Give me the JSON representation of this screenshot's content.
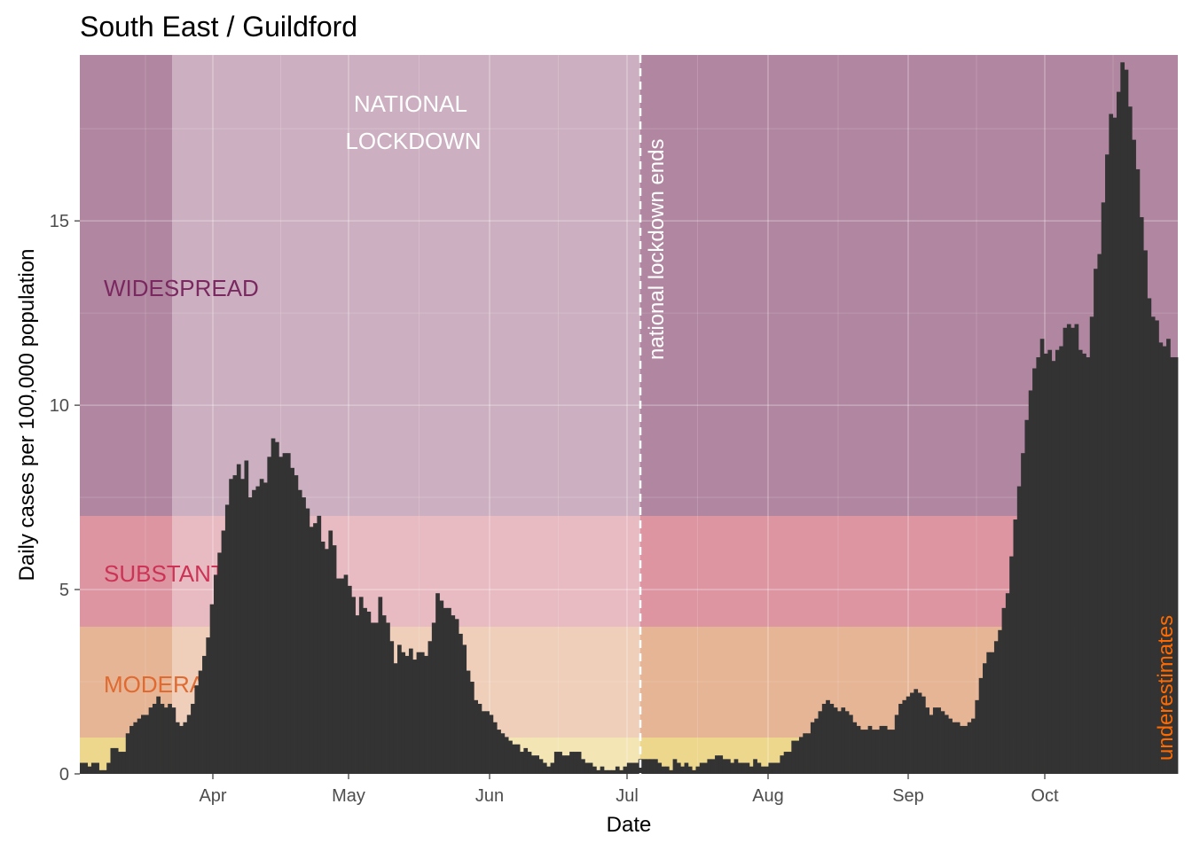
{
  "chart_data": {
    "type": "bar",
    "title": "South East / Guildford",
    "xlabel": "Date",
    "ylabel": "Daily cases per 100,000 population",
    "x_ticks": [
      "Apr",
      "May",
      "Jun",
      "Jul",
      "Aug",
      "Sep",
      "Oct"
    ],
    "y_ticks": [
      "0",
      "5",
      "10",
      "15"
    ],
    "ylim": [
      0,
      19.5
    ],
    "grid": true,
    "bands": [
      {
        "label": "",
        "from": 0,
        "to": 1,
        "color": "#e6c65c"
      },
      {
        "label": "MODERATE",
        "from": 1,
        "to": 4,
        "color": "#e0a37a"
      },
      {
        "label": "SUBSTANTIAL",
        "from": 4,
        "to": 7,
        "color": "#d37a8a"
      },
      {
        "label": "WIDESPREAD",
        "from": 7,
        "to": 19.5,
        "color": "#a3718f"
      }
    ],
    "band_label_colors": [
      "#d4a000",
      "#e06a30",
      "#cc3355",
      "#7a2860"
    ],
    "annotations": {
      "lockdown": "NATIONAL\nLOCKDOWN",
      "lockdown_end": "national lockdown ends",
      "underestimates": "underestimates"
    },
    "values": [
      0.3,
      0.3,
      0.2,
      0.3,
      0.3,
      0.1,
      0.1,
      0.3,
      0.7,
      0.7,
      0.6,
      0.6,
      1.1,
      1.3,
      1.4,
      1.5,
      1.6,
      1.6,
      1.8,
      1.9,
      2.1,
      1.9,
      1.8,
      1.9,
      1.8,
      1.4,
      1.3,
      1.4,
      1.6,
      1.9,
      2.4,
      2.8,
      3.2,
      3.7,
      4.6,
      5.4,
      6.0,
      6.6,
      7.3,
      8.0,
      8.1,
      8.4,
      8.0,
      8.5,
      7.5,
      7.7,
      7.8,
      8.0,
      7.9,
      8.6,
      9.1,
      9.0,
      8.6,
      8.7,
      8.7,
      8.3,
      8.1,
      7.7,
      7.5,
      7.2,
      6.7,
      6.8,
      7.0,
      6.3,
      6.1,
      6.6,
      6.2,
      5.3,
      5.3,
      5.4,
      5.1,
      4.8,
      4.3,
      4.8,
      4.5,
      4.4,
      4.1,
      4.1,
      4.8,
      4.3,
      4.1,
      3.6,
      3.0,
      3.5,
      3.3,
      3.2,
      3.4,
      3.1,
      3.3,
      3.3,
      3.2,
      3.6,
      4.1,
      4.9,
      4.7,
      4.5,
      4.5,
      4.3,
      4.2,
      3.8,
      3.5,
      2.8,
      2.5,
      2.0,
      1.9,
      1.7,
      1.7,
      1.6,
      1.4,
      1.2,
      1.1,
      1.0,
      0.9,
      0.8,
      0.8,
      0.6,
      0.7,
      0.6,
      0.5,
      0.5,
      0.4,
      0.3,
      0.2,
      0.3,
      0.6,
      0.6,
      0.5,
      0.5,
      0.6,
      0.6,
      0.6,
      0.4,
      0.3,
      0.3,
      0.2,
      0.1,
      0.2,
      0.1,
      0.1,
      0.1,
      0.2,
      0.1,
      0.2,
      0.3,
      0.3,
      0.3,
      0.4,
      0.4,
      0.4,
      0.4,
      0.4,
      0.3,
      0.2,
      0.2,
      0.1,
      0.4,
      0.3,
      0.2,
      0.3,
      0.2,
      0.1,
      0.2,
      0.3,
      0.3,
      0.4,
      0.4,
      0.5,
      0.5,
      0.4,
      0.4,
      0.3,
      0.4,
      0.3,
      0.3,
      0.3,
      0.2,
      0.4,
      0.3,
      0.2,
      0.2,
      0.3,
      0.3,
      0.3,
      0.5,
      0.6,
      0.6,
      0.9,
      0.9,
      1.0,
      1.1,
      1.1,
      1.4,
      1.5,
      1.7,
      1.9,
      2.0,
      1.9,
      1.8,
      1.7,
      1.8,
      1.7,
      1.6,
      1.4,
      1.3,
      1.2,
      1.2,
      1.3,
      1.2,
      1.2,
      1.3,
      1.3,
      1.2,
      1.2,
      1.6,
      1.9,
      2.0,
      2.1,
      2.2,
      2.3,
      2.2,
      2.1,
      1.8,
      1.6,
      1.8,
      1.8,
      1.7,
      1.6,
      1.5,
      1.4,
      1.4,
      1.3,
      1.3,
      1.4,
      1.5,
      2.0,
      2.6,
      3.0,
      3.3,
      3.3,
      3.6,
      3.9,
      4.5,
      4.9,
      5.9,
      6.9,
      7.8,
      8.7,
      9.6,
      10.4,
      11.0,
      11.3,
      11.8,
      11.4,
      11.5,
      11.2,
      11.5,
      11.6,
      12.1,
      12.2,
      12.1,
      12.2,
      11.5,
      11.4,
      11.3,
      12.4,
      13.7,
      14.1,
      15.5,
      16.8,
      17.9,
      17.8,
      18.5,
      19.3,
      19.1,
      18.1,
      17.2,
      16.4,
      15.1,
      14.2,
      12.9,
      12.4,
      12.3,
      11.7,
      11.6,
      11.8,
      11.3,
      11.3
    ]
  }
}
